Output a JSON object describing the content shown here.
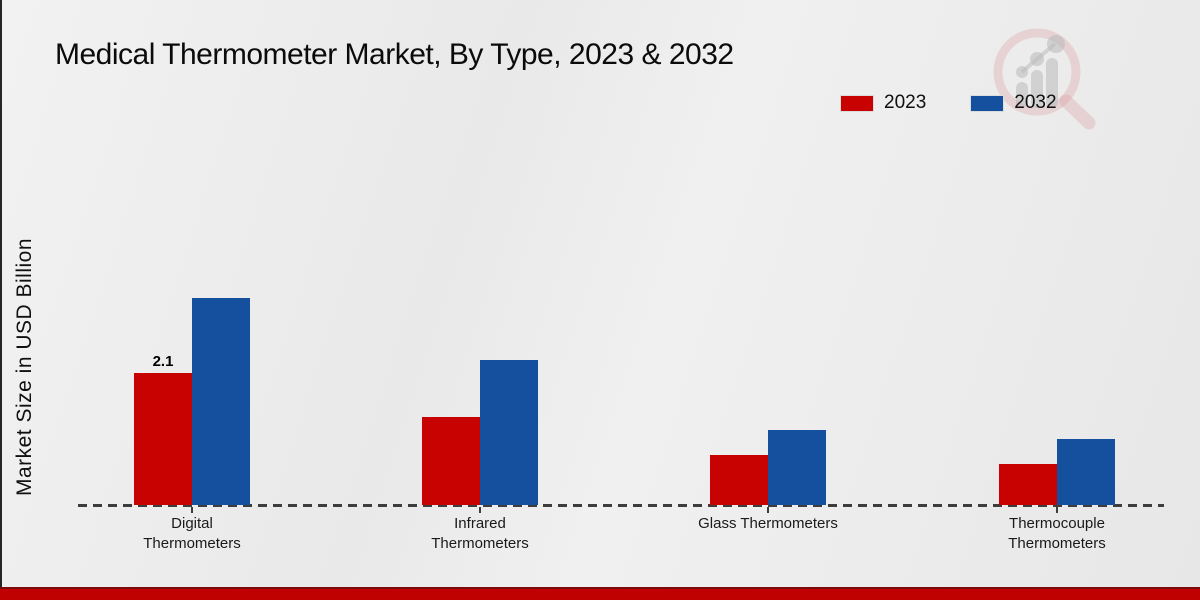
{
  "page": {
    "title": "Medical Thermometer Market, By Type, 2023 & 2032",
    "ylabel": "Market Size in USD Billion"
  },
  "legend": {
    "position": "top-right",
    "items": [
      {
        "label": "2023",
        "color": "#c80101"
      },
      {
        "label": "2032",
        "color": "#14509e"
      }
    ]
  },
  "colors": {
    "series_2023": "#c80101",
    "series_2032": "#14509e",
    "baseline": "#3d3d3d",
    "bottom_band": "#c00101",
    "bottom_band_edge": "#7d0a0a",
    "background": "#ececec"
  },
  "watermark": {
    "description": "magnifier-growth-chart-logo"
  },
  "chart_data": {
    "type": "bar",
    "title": "Medical Thermometer Market, By Type, 2023 & 2032",
    "xlabel": "",
    "ylabel": "Market Size in USD Billion",
    "categories": [
      "Digital Thermometers",
      "Infrared Thermometers",
      "Glass Thermometers",
      "Thermocouple Thermometers"
    ],
    "series": [
      {
        "name": "2023",
        "color": "#c80101",
        "values": [
          2.1,
          1.4,
          0.8,
          0.65
        ]
      },
      {
        "name": "2032",
        "color": "#14509e",
        "values": [
          3.3,
          2.3,
          1.2,
          1.05
        ]
      }
    ],
    "ylim": [
      0,
      3.5
    ],
    "grid": false,
    "axis_line_style": "dashed-baseline-only",
    "legend_position": "top-right",
    "annotations": [
      {
        "text": "2.1",
        "category": "Digital Thermometers",
        "series": "2023"
      }
    ]
  }
}
